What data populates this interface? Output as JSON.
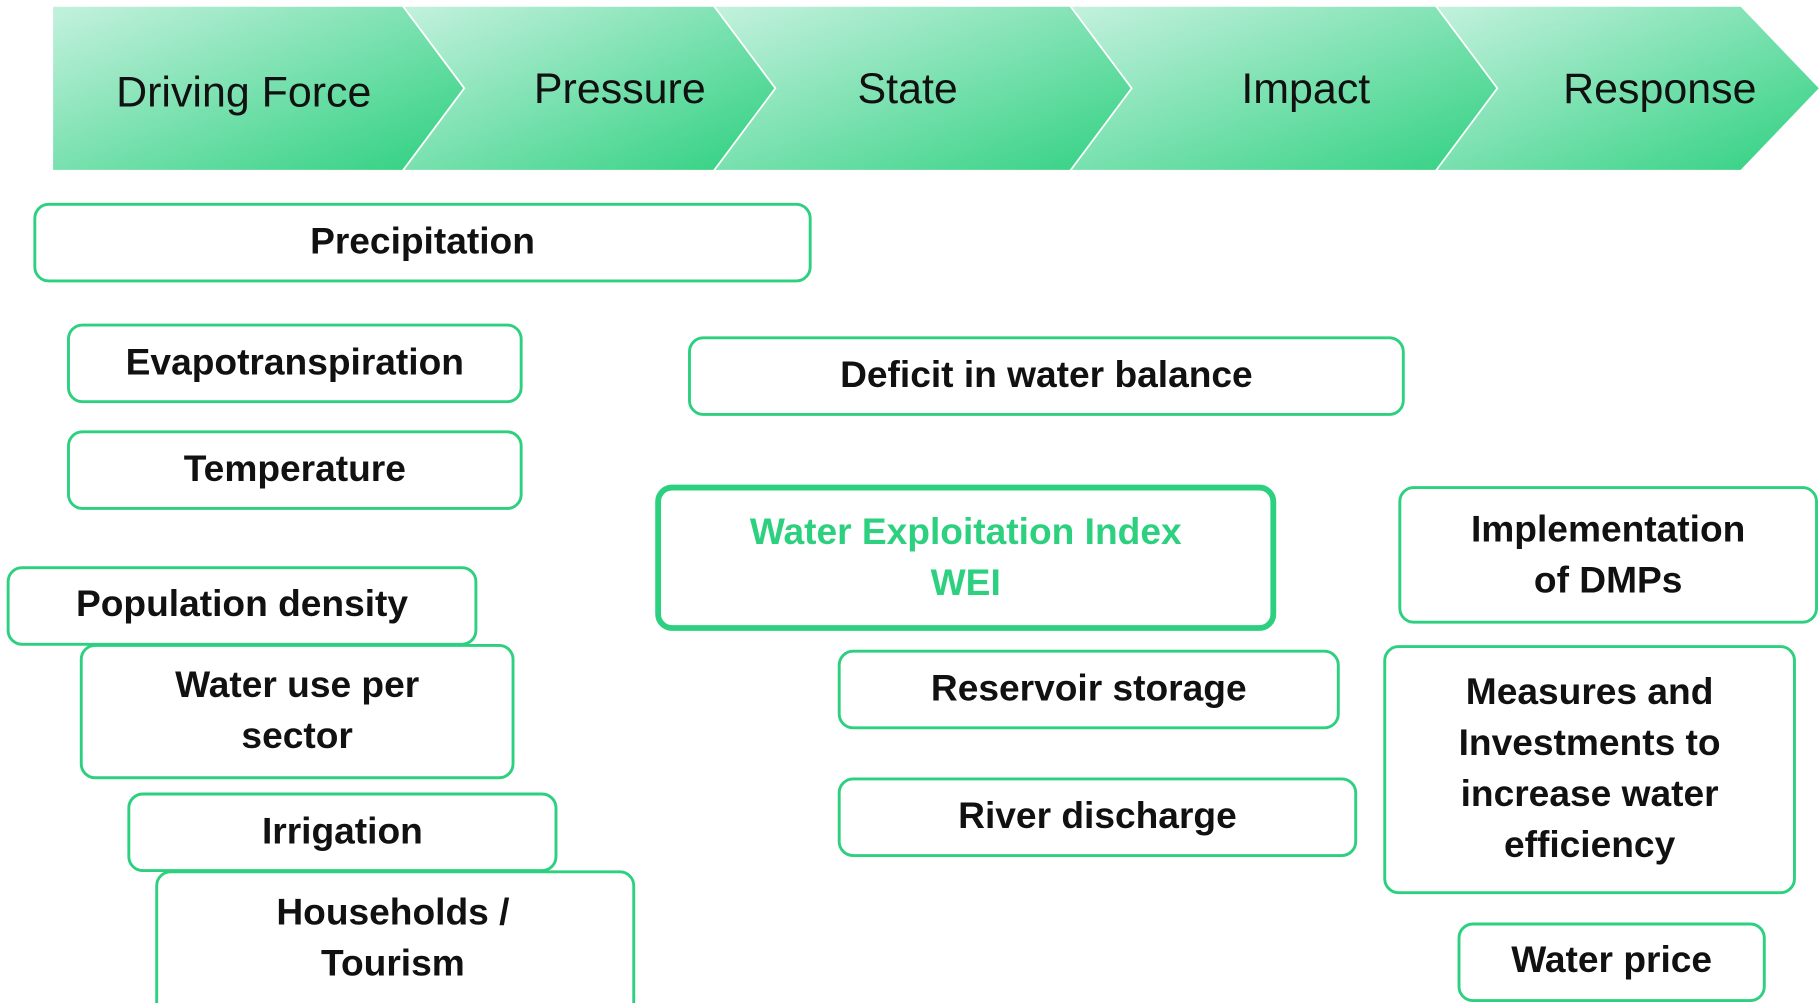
{
  "stages": [
    "Driving Force",
    "Pressure",
    "State",
    "Impact",
    "Response"
  ],
  "boxes": [
    {
      "lines": [
        "Precipitation"
      ]
    },
    {
      "lines": [
        "Evapotranspiration"
      ]
    },
    {
      "lines": [
        "Temperature"
      ]
    },
    {
      "lines": [
        "Population density"
      ]
    },
    {
      "lines": [
        "Water use per",
        "sector"
      ]
    },
    {
      "lines": [
        "Irrigation"
      ]
    },
    {
      "lines": [
        "Households /",
        "Tourism"
      ]
    },
    {
      "lines": [
        "Deficit in water balance"
      ]
    },
    {
      "lines": [
        "Water Exploitation Index",
        "WEI"
      ]
    },
    {
      "lines": [
        "Reservoir  storage"
      ]
    },
    {
      "lines": [
        "River discharge"
      ]
    },
    {
      "lines": [
        "Implementation",
        "of DMPs"
      ]
    },
    {
      "lines": [
        "Measures and",
        "Investments to",
        "increase water",
        "efficiency"
      ]
    },
    {
      "lines": [
        "Water price"
      ]
    }
  ]
}
